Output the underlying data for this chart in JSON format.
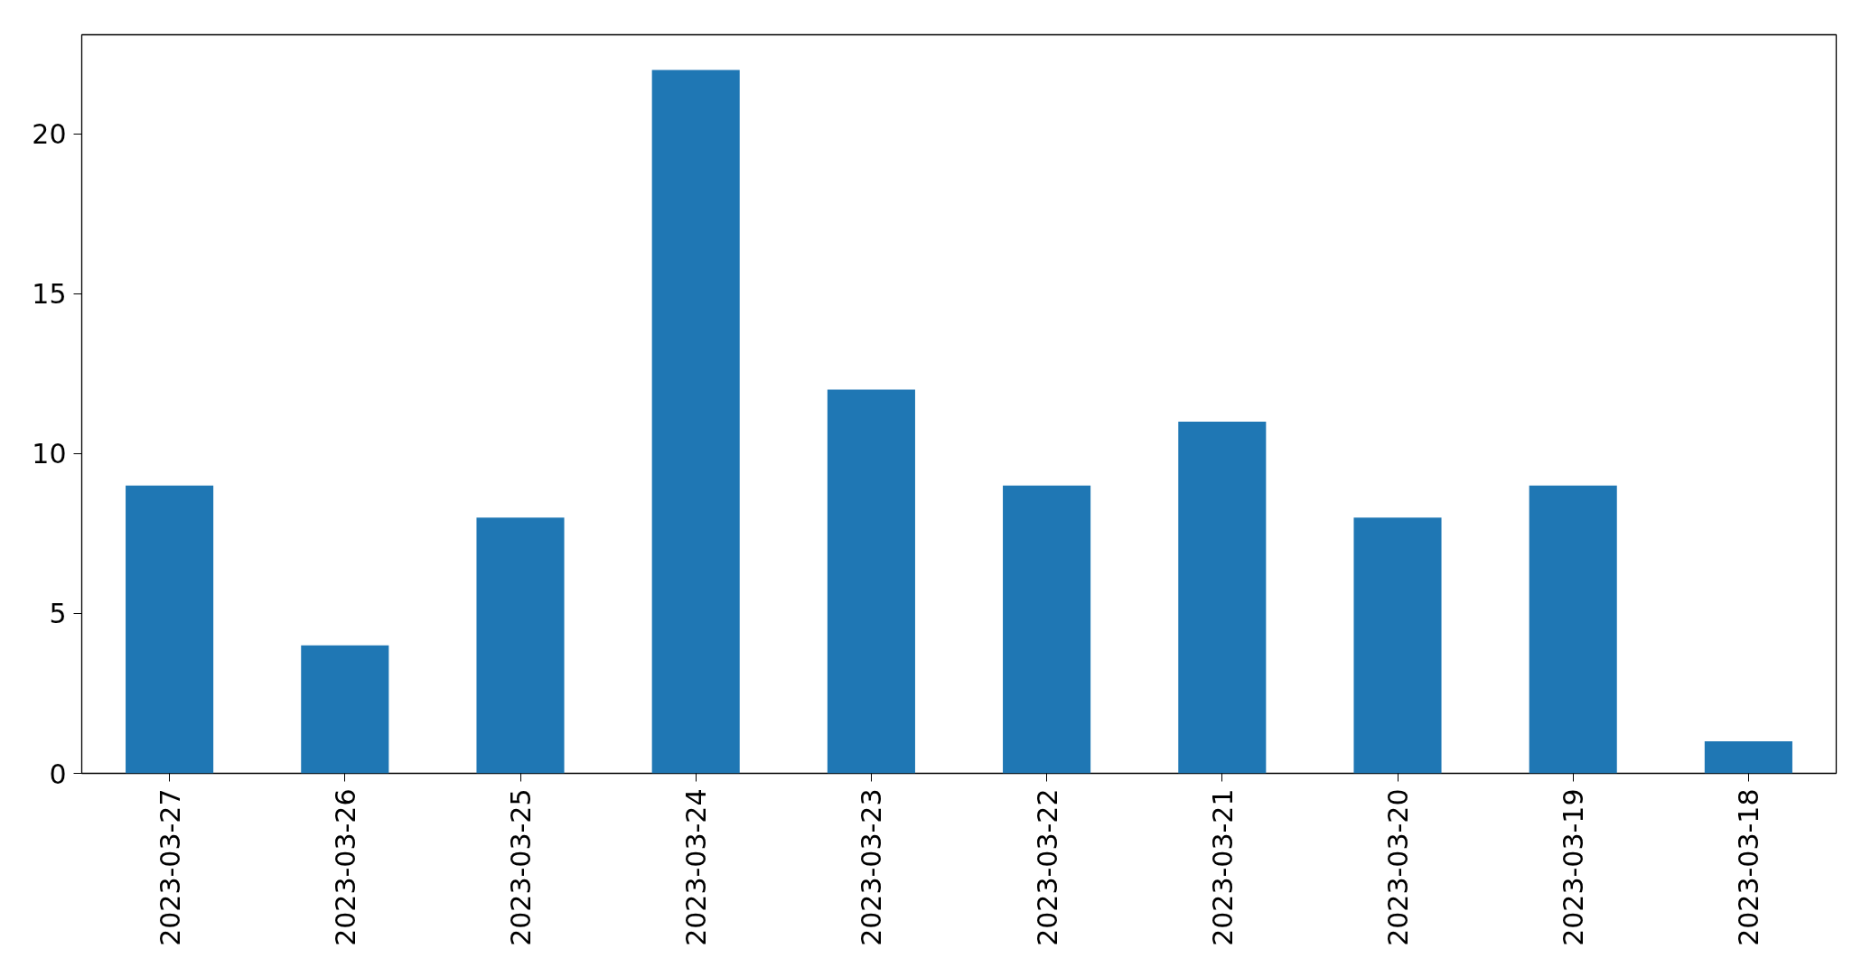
{
  "chart_data": {
    "type": "bar",
    "categories": [
      "2023-03-27",
      "2023-03-26",
      "2023-03-25",
      "2023-03-24",
      "2023-03-23",
      "2023-03-22",
      "2023-03-21",
      "2023-03-20",
      "2023-03-19",
      "2023-03-18"
    ],
    "values": [
      9,
      4,
      8,
      22,
      12,
      9,
      11,
      8,
      9,
      1
    ],
    "color": "#1f77b4",
    "ylim": [
      0,
      23.1
    ],
    "yticks": [
      0,
      5,
      10,
      15,
      20
    ],
    "grid": false
  }
}
